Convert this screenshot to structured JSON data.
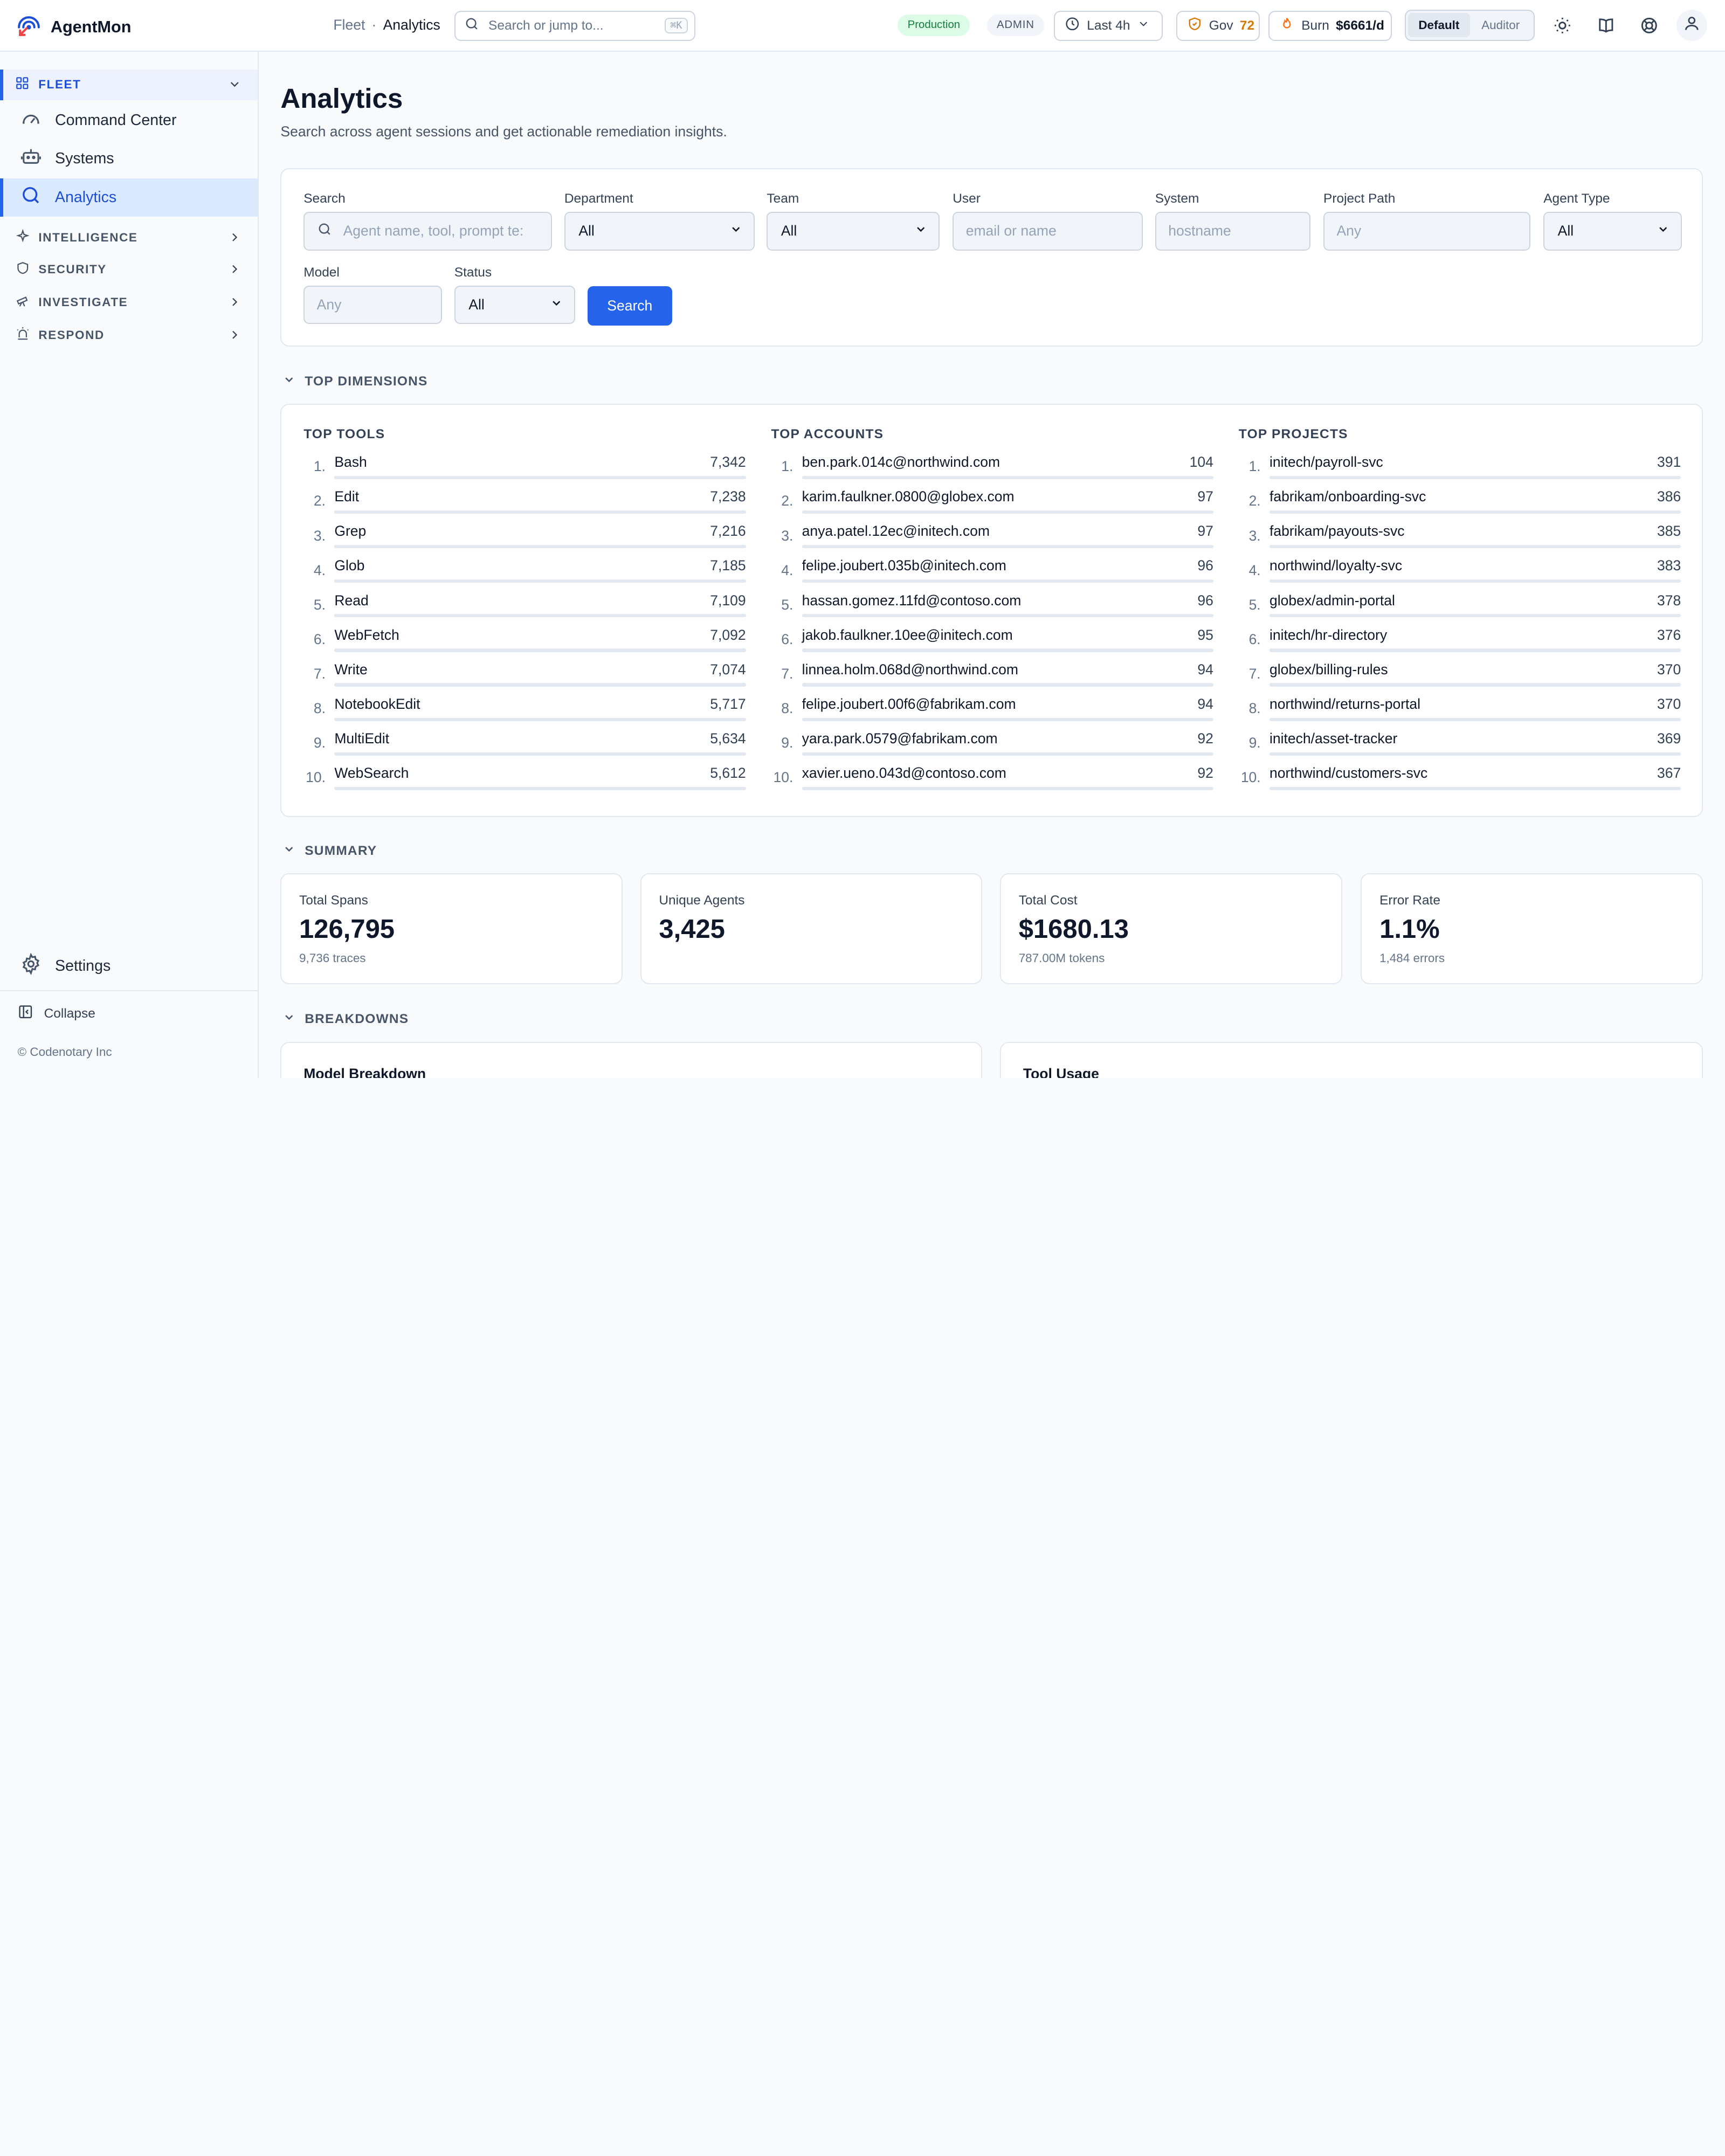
{
  "brand": {
    "name": "AgentMon"
  },
  "breadcrumb": {
    "parent": "Fleet",
    "separator": "·",
    "current": "Analytics"
  },
  "topsearch": {
    "placeholder": "Search or jump to...",
    "shortcut": "⌘K"
  },
  "env": {
    "label": "Production"
  },
  "role": {
    "label": "ADMIN"
  },
  "time_range": {
    "label": "Last 4h"
  },
  "gov": {
    "label": "Gov",
    "value": "72"
  },
  "burn": {
    "label": "Burn",
    "value": "$6661/d"
  },
  "view_mode": {
    "options": [
      "Default",
      "Auditor"
    ],
    "selected": "Default"
  },
  "sidebar": {
    "fleet": {
      "label": "FLEET",
      "items": [
        {
          "label": "Command Center",
          "icon": "gauge-icon"
        },
        {
          "label": "Systems",
          "icon": "robot-icon"
        },
        {
          "label": "Analytics",
          "icon": "search-icon",
          "active": true
        }
      ]
    },
    "sections": [
      {
        "label": "INTELLIGENCE",
        "icon": "sparkle-icon"
      },
      {
        "label": "SECURITY",
        "icon": "shield-icon"
      },
      {
        "label": "INVESTIGATE",
        "icon": "telescope-icon"
      },
      {
        "label": "RESPOND",
        "icon": "siren-icon"
      }
    ],
    "settings": "Settings",
    "collapse": "Collapse",
    "copyright": "© Codenotary Inc"
  },
  "page": {
    "title": "Analytics",
    "subtitle": "Search across agent sessions and get actionable remediation insights."
  },
  "filters": {
    "search": {
      "label": "Search",
      "placeholder": "Agent name, tool, prompt te:"
    },
    "department": {
      "label": "Department",
      "value": "All"
    },
    "team": {
      "label": "Team",
      "value": "All"
    },
    "user": {
      "label": "User",
      "placeholder": "email or name"
    },
    "system": {
      "label": "System",
      "placeholder": "hostname"
    },
    "project_path": {
      "label": "Project Path",
      "placeholder": "Any"
    },
    "agent_type": {
      "label": "Agent Type",
      "value": "All"
    },
    "model": {
      "label": "Model",
      "placeholder": "Any"
    },
    "status": {
      "label": "Status",
      "value": "All"
    },
    "submit": "Search"
  },
  "top_dimensions": {
    "title": "TOP DIMENSIONS",
    "tools": {
      "title": "TOP TOOLS",
      "rows": [
        {
          "name": "Bash",
          "value": "7,342"
        },
        {
          "name": "Edit",
          "value": "7,238"
        },
        {
          "name": "Grep",
          "value": "7,216"
        },
        {
          "name": "Glob",
          "value": "7,185"
        },
        {
          "name": "Read",
          "value": "7,109"
        },
        {
          "name": "WebFetch",
          "value": "7,092"
        },
        {
          "name": "Write",
          "value": "7,074"
        },
        {
          "name": "NotebookEdit",
          "value": "5,717"
        },
        {
          "name": "MultiEdit",
          "value": "5,634"
        },
        {
          "name": "WebSearch",
          "value": "5,612"
        }
      ]
    },
    "accounts": {
      "title": "TOP ACCOUNTS",
      "rows": [
        {
          "name": "ben.park.014c@northwind.com",
          "value": "104"
        },
        {
          "name": "karim.faulkner.0800@globex.com",
          "value": "97"
        },
        {
          "name": "anya.patel.12ec@initech.com",
          "value": "97"
        },
        {
          "name": "felipe.joubert.035b@initech.com",
          "value": "96"
        },
        {
          "name": "hassan.gomez.11fd@contoso.com",
          "value": "96"
        },
        {
          "name": "jakob.faulkner.10ee@initech.com",
          "value": "95"
        },
        {
          "name": "linnea.holm.068d@northwind.com",
          "value": "94"
        },
        {
          "name": "felipe.joubert.00f6@fabrikam.com",
          "value": "94"
        },
        {
          "name": "yara.park.0579@fabrikam.com",
          "value": "92"
        },
        {
          "name": "xavier.ueno.043d@contoso.com",
          "value": "92"
        }
      ]
    },
    "projects": {
      "title": "TOP PROJECTS",
      "rows": [
        {
          "name": "initech/payroll-svc",
          "value": "391"
        },
        {
          "name": "fabrikam/onboarding-svc",
          "value": "386"
        },
        {
          "name": "fabrikam/payouts-svc",
          "value": "385"
        },
        {
          "name": "northwind/loyalty-svc",
          "value": "383"
        },
        {
          "name": "globex/admin-portal",
          "value": "378"
        },
        {
          "name": "initech/hr-directory",
          "value": "376"
        },
        {
          "name": "globex/billing-rules",
          "value": "370"
        },
        {
          "name": "northwind/returns-portal",
          "value": "370"
        },
        {
          "name": "initech/asset-tracker",
          "value": "369"
        },
        {
          "name": "northwind/customers-svc",
          "value": "367"
        }
      ]
    }
  },
  "summary": {
    "title": "SUMMARY",
    "cards": [
      {
        "label": "Total Spans",
        "value": "126,795",
        "sub": "9,736 traces"
      },
      {
        "label": "Unique Agents",
        "value": "3,425",
        "sub": ""
      },
      {
        "label": "Total Cost",
        "value": "$1680.13",
        "sub": "787.00M tokens"
      },
      {
        "label": "Error Rate",
        "value": "1.1%",
        "sub": "1,484 errors"
      }
    ]
  },
  "breakdowns": {
    "title": "BREAKDOWNS",
    "cards": [
      {
        "title": "Model Breakdown"
      },
      {
        "title": "Tool Usage"
      }
    ]
  },
  "colors": {
    "accent": "#2563eb",
    "accent_bg": "#dbeafe",
    "prod_bg": "#dcfce7",
    "prod_text": "#15803d",
    "gov": "#d97706",
    "burn_icon": "#f97316"
  }
}
